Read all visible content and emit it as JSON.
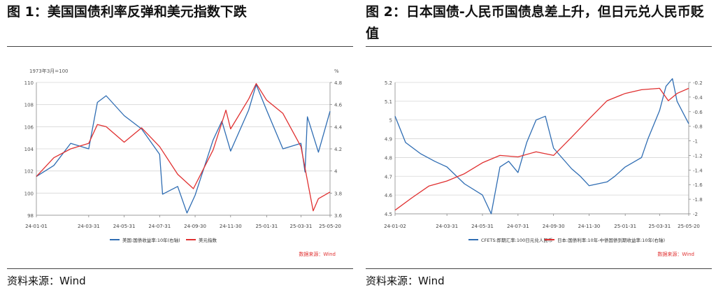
{
  "figures": [
    {
      "title": "图 1：美国国债利率反弹和美元指数下跌",
      "source": "资料来源：Wind",
      "chart_data": {
        "type": "line",
        "unit_left": "1973年3月=100",
        "unit_right": "%",
        "x_ticks": [
          "24-01-01",
          "24-03-31",
          "24-05-31",
          "24-07-31",
          "24-09-30",
          "24-11-30",
          "25-01-31",
          "25-03-31",
          "25-05-20"
        ],
        "ylim_left": [
          98,
          110
        ],
        "yticks_left": [
          98,
          100,
          102,
          104,
          106,
          108,
          110
        ],
        "ylim_right": [
          3.6,
          4.8
        ],
        "yticks_right": [
          3.6,
          3.8,
          4,
          4.2,
          4.4,
          4.6,
          4.8
        ],
        "ytick_labels_right": [
          "3.6",
          "3.8",
          "4",
          "4.2",
          "4.4",
          "4.6",
          "4.8"
        ],
        "series": [
          {
            "name": "美国:国债收益率:10年(右轴)",
            "axis": "right",
            "color": "#2f6db3",
            "x": [
              "24-01-01",
              "24-01-31",
              "24-02-29",
              "24-03-31",
              "24-04-15",
              "24-04-30",
              "24-05-31",
              "24-06-30",
              "24-07-31",
              "24-08-05",
              "24-08-31",
              "24-09-16",
              "24-09-30",
              "24-10-31",
              "24-11-15",
              "24-11-30",
              "24-12-31",
              "25-01-13",
              "25-01-31",
              "25-02-28",
              "25-03-31",
              "25-04-07",
              "25-04-11",
              "25-04-30",
              "25-05-20"
            ],
            "values": [
              3.95,
              4.05,
              4.25,
              4.2,
              4.62,
              4.68,
              4.5,
              4.38,
              4.15,
              3.79,
              3.86,
              3.62,
              3.78,
              4.28,
              4.45,
              4.18,
              4.55,
              4.78,
              4.55,
              4.2,
              4.25,
              3.99,
              4.49,
              4.17,
              4.54
            ]
          },
          {
            "name": "美元指数",
            "axis": "left",
            "color": "#e03030",
            "x": [
              "24-01-01",
              "24-01-31",
              "24-02-29",
              "24-03-31",
              "24-04-15",
              "24-04-30",
              "24-05-31",
              "24-06-30",
              "24-07-31",
              "24-08-31",
              "24-09-27",
              "24-10-31",
              "24-11-22",
              "24-11-30",
              "24-12-31",
              "25-01-13",
              "25-01-31",
              "25-02-28",
              "25-03-31",
              "25-04-21",
              "25-04-30",
              "25-05-20"
            ],
            "values": [
              101.5,
              103.2,
              104.0,
              104.5,
              106.2,
              106.0,
              104.6,
              105.9,
              104.2,
              101.7,
              100.4,
              103.9,
              107.5,
              105.8,
              108.5,
              109.9,
              108.4,
              107.2,
              104.2,
              98.4,
              99.5,
              100.1
            ]
          }
        ],
        "annotation": "数据来源：Wind"
      }
    },
    {
      "title": "图 2：日本国债-人民币国债息差上升，但日元兑人民币贬值",
      "source": "资料来源：Wind",
      "chart_data": {
        "type": "line",
        "x_ticks": [
          "24-01-02",
          "24-03-31",
          "24-05-31",
          "24-07-31",
          "24-09-30",
          "24-11-30",
          "25-01-31",
          "25-03-31",
          "25-05-20"
        ],
        "ylim_left": [
          4.5,
          5.2
        ],
        "yticks_left": [
          4.5,
          4.6,
          4.7,
          4.8,
          4.9,
          5,
          5.1,
          5.2
        ],
        "ylim_right": [
          -2.0,
          -0.2
        ],
        "yticks_right": [
          -2,
          -1.8,
          -1.6,
          -1.4,
          -1.2,
          -1,
          -0.8,
          -0.6,
          -0.4,
          -0.2
        ],
        "ytick_labels_right": [
          "-2",
          "-1.8",
          "-1.6",
          "-1.4",
          "-1.2",
          "-1",
          "-0.8",
          "-0.6",
          "-0.4",
          "-0.2"
        ],
        "series": [
          {
            "name": "CFETS:即期汇率:100日元兑人民币",
            "axis": "left",
            "color": "#2f6db3",
            "x": [
              "24-01-02",
              "24-01-20",
              "24-02-15",
              "24-03-10",
              "24-03-31",
              "24-04-30",
              "24-05-31",
              "24-06-15",
              "24-06-30",
              "24-07-15",
              "24-07-31",
              "24-08-15",
              "24-08-31",
              "24-09-16",
              "24-09-30",
              "24-10-31",
              "24-11-15",
              "24-11-30",
              "24-12-31",
              "25-01-13",
              "25-01-31",
              "25-02-28",
              "25-03-11",
              "25-03-31",
              "25-04-11",
              "25-04-22",
              "25-04-30",
              "25-05-20"
            ],
            "values": [
              5.02,
              4.88,
              4.82,
              4.78,
              4.75,
              4.66,
              4.6,
              4.5,
              4.75,
              4.78,
              4.72,
              4.88,
              5.0,
              5.02,
              4.85,
              4.74,
              4.7,
              4.65,
              4.67,
              4.7,
              4.75,
              4.8,
              4.9,
              5.05,
              5.18,
              5.22,
              5.1,
              4.98
            ]
          },
          {
            "name": "日本:国债利率:10年-中债国债到期收益率:10年(右轴)",
            "axis": "right",
            "color": "#e03030",
            "x": [
              "24-01-02",
              "24-01-31",
              "24-02-29",
              "24-03-31",
              "24-04-30",
              "24-05-31",
              "24-06-30",
              "24-07-31",
              "24-08-31",
              "24-09-30",
              "24-10-31",
              "24-11-30",
              "24-12-31",
              "25-01-31",
              "25-02-28",
              "25-03-31",
              "25-04-15",
              "25-04-30",
              "25-05-20"
            ],
            "values": [
              -1.95,
              -1.78,
              -1.62,
              -1.55,
              -1.45,
              -1.3,
              -1.2,
              -1.22,
              -1.15,
              -1.2,
              -0.95,
              -0.7,
              -0.45,
              -0.35,
              -0.3,
              -0.28,
              -0.45,
              -0.35,
              -0.28
            ]
          }
        ],
        "annotation": "数据来源：Wind"
      }
    }
  ]
}
